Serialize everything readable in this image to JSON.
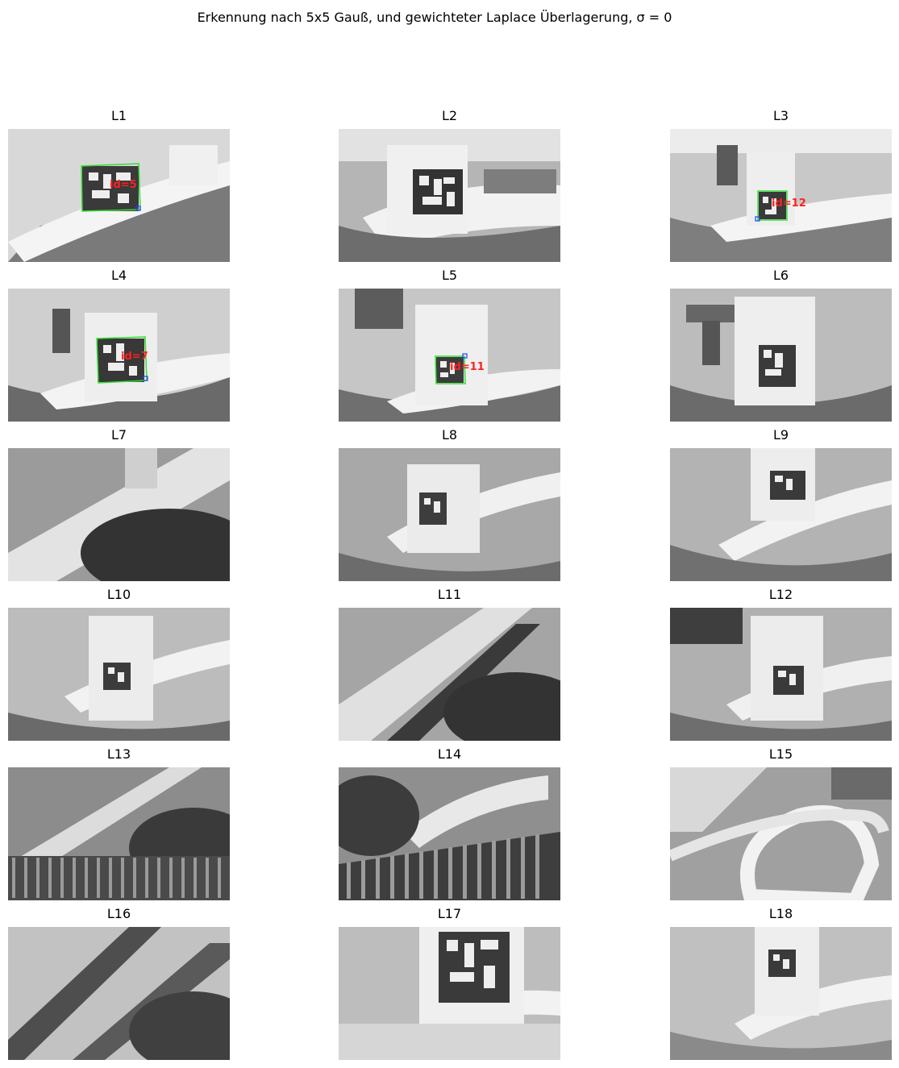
{
  "figure": {
    "title": "Erkennung nach 5x5 Gauß, und gewichteter Laplace Überlagerung, σ = 0"
  },
  "panels": [
    {
      "label": "L1",
      "detected": true,
      "marker_id_label": "id=5"
    },
    {
      "label": "L2",
      "detected": false
    },
    {
      "label": "L3",
      "detected": true,
      "marker_id_label": "id=12"
    },
    {
      "label": "L4",
      "detected": true,
      "marker_id_label": "id=7"
    },
    {
      "label": "L5",
      "detected": true,
      "marker_id_label": "id=11"
    },
    {
      "label": "L6",
      "detected": false
    },
    {
      "label": "L7",
      "detected": false
    },
    {
      "label": "L8",
      "detected": false
    },
    {
      "label": "L9",
      "detected": false
    },
    {
      "label": "L10",
      "detected": false
    },
    {
      "label": "L11",
      "detected": false
    },
    {
      "label": "L12",
      "detected": false
    },
    {
      "label": "L13",
      "detected": false
    },
    {
      "label": "L14",
      "detected": false
    },
    {
      "label": "L15",
      "detected": false
    },
    {
      "label": "L16",
      "detected": false
    },
    {
      "label": "L17",
      "detected": false
    },
    {
      "label": "L18",
      "detected": false
    }
  ],
  "colors": {
    "detection_outline": "#33dd33",
    "corner_marker": "#2244ff",
    "id_text": "#ff2020"
  }
}
